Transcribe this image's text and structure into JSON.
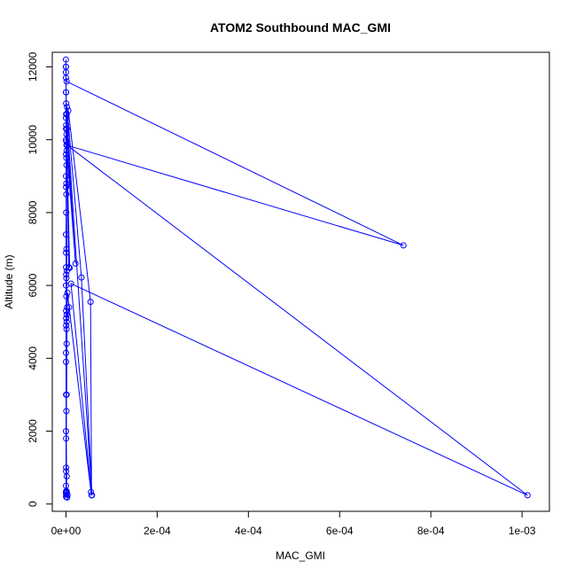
{
  "chart_data": {
    "type": "line",
    "title": "ATOM2 Southbound MAC_GMI",
    "xlabel": "MAC_GMI",
    "ylabel": "Altitude (m)",
    "xlim": [
      -3e-05,
      0.00106
    ],
    "ylim": [
      -200,
      12400
    ],
    "xticks": [
      0,
      0.0002,
      0.0004,
      0.0006,
      0.0008,
      0.001
    ],
    "xtick_labels": [
      "0e+00",
      "2e-04",
      "4e-04",
      "6e-04",
      "8e-04",
      "1e-03"
    ],
    "yticks": [
      0,
      2000,
      4000,
      6000,
      8000,
      10000,
      12000
    ],
    "ytick_labels": [
      "0",
      "2000",
      "4000",
      "6000",
      "8000",
      "10000",
      "12000"
    ],
    "grid": false,
    "color": "#0000ff",
    "marker": "open-circle",
    "series": [
      {
        "points": [
          [
            0.0,
            12200
          ],
          [
            0.0,
            12000
          ],
          [
            0.0,
            11850
          ],
          [
            0.0,
            11700
          ],
          [
            1.5e-06,
            11600
          ],
          [
            0.00074,
            7100
          ],
          [
            1.2e-06,
            9850
          ],
          [
            1.8e-06,
            10300
          ],
          [
            2.1e-05,
            6600
          ],
          [
            9e-07,
            9950
          ],
          [
            2.2e-06,
            10900
          ],
          [
            3.4e-05,
            6220
          ],
          [
            5.7e-05,
            240
          ],
          [
            1.6e-06,
            10700
          ],
          [
            5.2e-06,
            10800
          ],
          [
            5.4e-05,
            5550
          ],
          [
            5.6e-05,
            240
          ],
          [
            1.1e-05,
            6050
          ],
          [
            0.001012,
            240
          ],
          [
            2.5e-06,
            9850
          ],
          [
            6.2e-06,
            6500
          ],
          [
            1.3e-06,
            10150
          ],
          [
            8e-06,
            6480
          ],
          [
            1.5e-06,
            9700
          ],
          [
            8e-07,
            8800
          ],
          [
            1.4e-06,
            5000
          ],
          [
            7e-06,
            5400
          ],
          [
            5.5e-05,
            330
          ],
          [
            3.2e-06,
            5800
          ],
          [
            1.5e-06,
            4400
          ],
          [
            1.4e-06,
            3000
          ],
          [
            2.5e-06,
            5400
          ],
          [
            8e-07,
            2550
          ],
          [
            4e-07,
            900
          ],
          [
            1.2e-06,
            350
          ],
          [
            2e-07,
            330
          ],
          [
            3.5e-06,
            250
          ],
          [
            2.6e-06,
            180
          ],
          [
            1.8e-06,
            320
          ],
          [
            5e-07,
            260
          ],
          [
            1.6e-06,
            760
          ],
          [
            3e-07,
            1800
          ],
          [
            2e-06,
            6400
          ],
          [
            8e-07,
            9500
          ],
          [
            4e-07,
            11300
          ]
        ]
      },
      {
        "points": [
          [
            0.0,
            12000
          ],
          [
            2e-07,
            11300
          ],
          [
            5e-07,
            11000
          ],
          [
            2e-07,
            10600
          ],
          [
            3e-07,
            10300
          ],
          [
            1e-07,
            10000
          ],
          [
            4e-07,
            9600
          ],
          [
            2e-07,
            9000
          ],
          [
            3e-07,
            8700
          ],
          [
            5e-07,
            8000
          ],
          [
            2e-07,
            7400
          ],
          [
            4e-07,
            6900
          ],
          [
            3e-07,
            6500
          ],
          [
            6e-07,
            6300
          ],
          [
            2e-07,
            6000
          ],
          [
            8e-07,
            5700
          ],
          [
            3e-07,
            5300
          ],
          [
            6e-07,
            5100
          ],
          [
            4e-07,
            4900
          ],
          [
            2e-07,
            4150
          ],
          [
            1e-07,
            3900
          ],
          [
            3e-07,
            3000
          ],
          [
            2e-07,
            2000
          ],
          [
            4e-07,
            1000
          ],
          [
            2e-07,
            500
          ],
          [
            1e-07,
            300
          ],
          [
            3e-07,
            200
          ],
          [
            5e-07,
            350
          ],
          [
            1.2e-06,
            4800
          ],
          [
            1.5e-06,
            5200
          ],
          [
            9e-07,
            6200
          ],
          [
            1.1e-06,
            7000
          ],
          [
            8e-07,
            8500
          ],
          [
            1.2e-06,
            9300
          ],
          [
            6e-07,
            10400
          ],
          [
            5e-07,
            10700
          ]
        ]
      }
    ]
  }
}
